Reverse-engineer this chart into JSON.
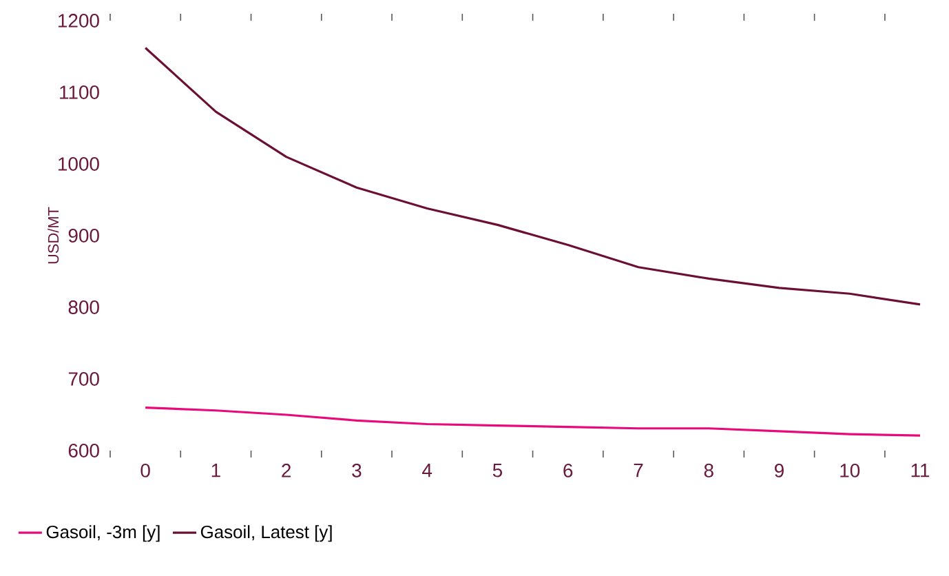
{
  "chart_data": {
    "type": "line",
    "ylabel": "USD/MT",
    "categories": [
      "0",
      "1",
      "2",
      "3",
      "4",
      "5",
      "6",
      "7",
      "8",
      "9",
      "10",
      "11"
    ],
    "series": [
      {
        "name": "Gasoil, -3m [y]",
        "color": "#e8097a",
        "values": [
          660,
          656,
          650,
          642,
          637,
          635,
          633,
          631,
          631,
          627,
          623,
          621
        ]
      },
      {
        "name": "Gasoil, Latest [y]",
        "color": "#6b0f35",
        "values": [
          1162,
          1073,
          1010,
          967,
          938,
          915,
          887,
          856,
          840,
          827,
          819,
          804
        ]
      }
    ],
    "ylim": [
      600,
      1200
    ],
    "yticks": [
      600,
      700,
      800,
      900,
      1000,
      1100,
      1200
    ],
    "legend": "bottom left",
    "grid": false,
    "marker": "none",
    "line_style": "solid"
  }
}
